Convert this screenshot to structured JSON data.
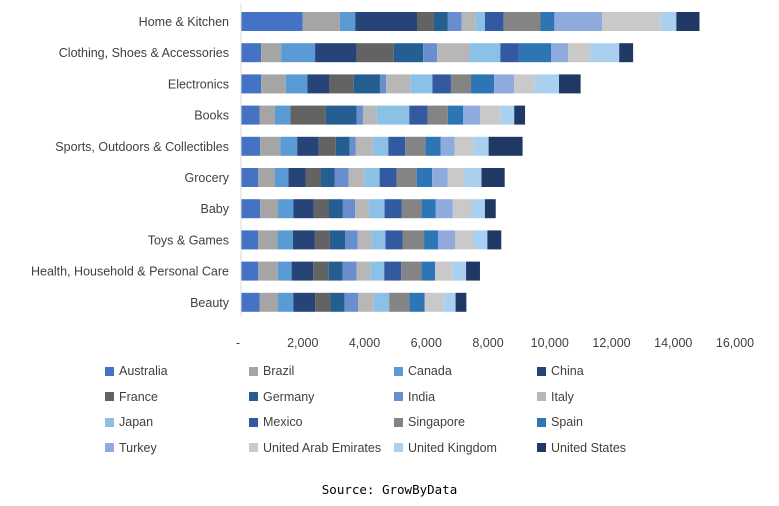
{
  "chart_data": {
    "type": "bar",
    "orientation": "horizontal",
    "stacked": true,
    "categories": [
      "Home & Kitchen",
      "Clothing, Shoes & Accessories",
      "Electronics",
      "Books",
      "Sports, Outdoors & Collectibles",
      "Grocery",
      "Baby",
      "Toys & Games",
      "Health, Household & Personal Care",
      "Beauty"
    ],
    "x_ticks": [
      "-",
      "2,000",
      "4,000",
      "6,000",
      "8,000",
      "10,000",
      "12,000",
      "14,000",
      "16,000"
    ],
    "xlim": [
      0,
      16000
    ],
    "grid": false,
    "legend_position": "bottom",
    "series": [
      {
        "name": "Australia",
        "color": "#4472C4",
        "values": [
          2000,
          650,
          650,
          600,
          620,
          560,
          620,
          560,
          560,
          600
        ]
      },
      {
        "name": "Brazil",
        "color": "#A5A5A5",
        "values": [
          1200,
          650,
          800,
          500,
          650,
          530,
          580,
          620,
          630,
          600
        ]
      },
      {
        "name": "Canada",
        "color": "#5B9BD5",
        "values": [
          500,
          1100,
          700,
          500,
          550,
          450,
          500,
          500,
          450,
          500
        ]
      },
      {
        "name": "China",
        "color": "#264478",
        "values": [
          2000,
          1350,
          700,
          0,
          700,
          550,
          650,
          700,
          700,
          700
        ]
      },
      {
        "name": "France",
        "color": "#636363",
        "values": [
          550,
          1200,
          800,
          1150,
          550,
          500,
          500,
          500,
          500,
          500
        ]
      },
      {
        "name": "Germany",
        "color": "#255E91",
        "values": [
          450,
          950,
          850,
          1000,
          450,
          450,
          450,
          500,
          450,
          450
        ]
      },
      {
        "name": "India",
        "color": "#698ED0",
        "values": [
          450,
          450,
          200,
          200,
          200,
          450,
          400,
          400,
          450,
          450
        ]
      },
      {
        "name": "Italy",
        "color": "#B7B7B7",
        "values": [
          450,
          1050,
          800,
          450,
          550,
          500,
          450,
          450,
          450,
          500
        ]
      },
      {
        "name": "Japan",
        "color": "#8CC1E7",
        "values": [
          300,
          1000,
          700,
          1050,
          500,
          500,
          500,
          450,
          450,
          500
        ]
      },
      {
        "name": "Mexico",
        "color": "#335AA1",
        "values": [
          600,
          600,
          600,
          600,
          550,
          550,
          550,
          550,
          550,
          0
        ]
      },
      {
        "name": "Singapore",
        "color": "#848484",
        "values": [
          1200,
          0,
          650,
          650,
          650,
          650,
          650,
          700,
          650,
          650
        ]
      },
      {
        "name": "Spain",
        "color": "#2E75B6",
        "values": [
          450,
          1050,
          750,
          500,
          500,
          500,
          450,
          450,
          450,
          500
        ]
      },
      {
        "name": "Turkey",
        "color": "#8FAADC",
        "values": [
          1550,
          550,
          650,
          550,
          450,
          500,
          550,
          550,
          0,
          0
        ]
      },
      {
        "name": "United Arab Emirates",
        "color": "#C9C9C9",
        "values": [
          1900,
          700,
          650,
          650,
          600,
          550,
          600,
          600,
          550,
          600
        ]
      },
      {
        "name": "United Kingdom",
        "color": "#A9D0EE",
        "values": [
          500,
          950,
          800,
          450,
          500,
          550,
          450,
          450,
          450,
          400
        ]
      },
      {
        "name": "United States",
        "color": "#203864",
        "values": [
          750,
          450,
          700,
          350,
          1100,
          750,
          350,
          450,
          450,
          350
        ]
      }
    ]
  },
  "source": "Source: GrowByData"
}
